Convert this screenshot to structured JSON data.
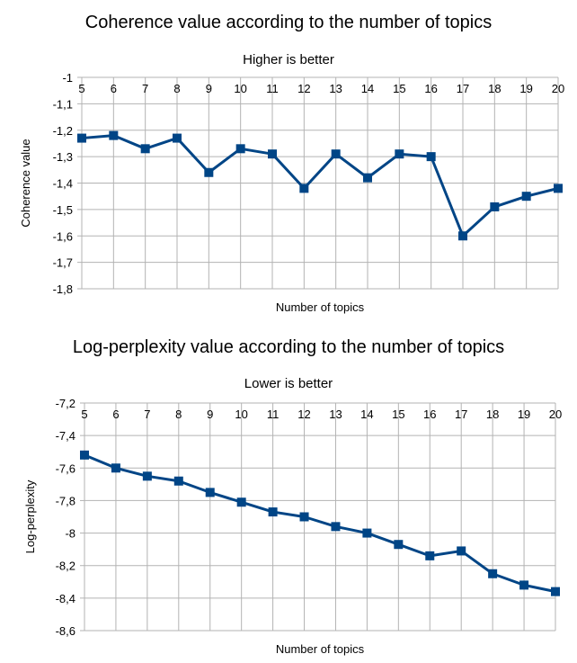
{
  "colors": {
    "series": "#004586",
    "grid": "#b3b3b3",
    "background": "#ffffff"
  },
  "chart_data": [
    {
      "type": "line",
      "title": "Coherence value according to the number of topics",
      "subtitle": "Higher is better",
      "xlabel": "Number of topics",
      "ylabel": "Coherence value",
      "x": [
        5,
        6,
        7,
        8,
        9,
        10,
        11,
        12,
        13,
        14,
        15,
        16,
        17,
        18,
        19,
        20
      ],
      "series": [
        {
          "values": [
            -1.23,
            -1.22,
            -1.27,
            -1.23,
            -1.36,
            -1.27,
            -1.29,
            -1.42,
            -1.29,
            -1.38,
            -1.29,
            -1.3,
            -1.6,
            -1.49,
            -1.45,
            -1.42
          ]
        }
      ],
      "ylim": [
        -1.8,
        -1.0
      ],
      "yticks": [
        -1.0,
        -1.1,
        -1.2,
        -1.3,
        -1.4,
        -1.5,
        -1.6,
        -1.7,
        -1.8
      ],
      "ytick_labels": [
        "-1",
        "-1,1",
        "-1,2",
        "-1,3",
        "-1,4",
        "-1,5",
        "-1,6",
        "-1,7",
        "-1,8"
      ],
      "xtick_labels": [
        "5",
        "6",
        "7",
        "8",
        "9",
        "10",
        "11",
        "12",
        "13",
        "14",
        "15",
        "16",
        "17",
        "18",
        "19",
        "20"
      ],
      "x_tick_position": "top",
      "grid": true,
      "marker": "square"
    },
    {
      "type": "line",
      "title": "Log-perplexity value according to the number of topics",
      "subtitle": "Lower is better",
      "xlabel": "Number of topics",
      "ylabel": "Log-perplexity",
      "x": [
        5,
        6,
        7,
        8,
        9,
        10,
        11,
        12,
        13,
        14,
        15,
        16,
        17,
        18,
        19,
        20
      ],
      "series": [
        {
          "values": [
            -7.52,
            -7.6,
            -7.65,
            -7.68,
            -7.75,
            -7.81,
            -7.87,
            -7.9,
            -7.96,
            -8.0,
            -8.07,
            -8.14,
            -8.11,
            -8.25,
            -8.32,
            -8.36
          ]
        }
      ],
      "ylim": [
        -8.6,
        -7.2
      ],
      "yticks": [
        -7.2,
        -7.4,
        -7.6,
        -7.8,
        -8.0,
        -8.2,
        -8.4,
        -8.6
      ],
      "ytick_labels": [
        "-7,2",
        "-7,4",
        "-7,6",
        "-7,8",
        "-8",
        "-8,2",
        "-8,4",
        "-8,6"
      ],
      "xtick_labels": [
        "5",
        "6",
        "7",
        "8",
        "9",
        "10",
        "11",
        "12",
        "13",
        "14",
        "15",
        "16",
        "17",
        "18",
        "19",
        "20"
      ],
      "x_tick_position": "top",
      "grid": true,
      "marker": "square"
    }
  ]
}
